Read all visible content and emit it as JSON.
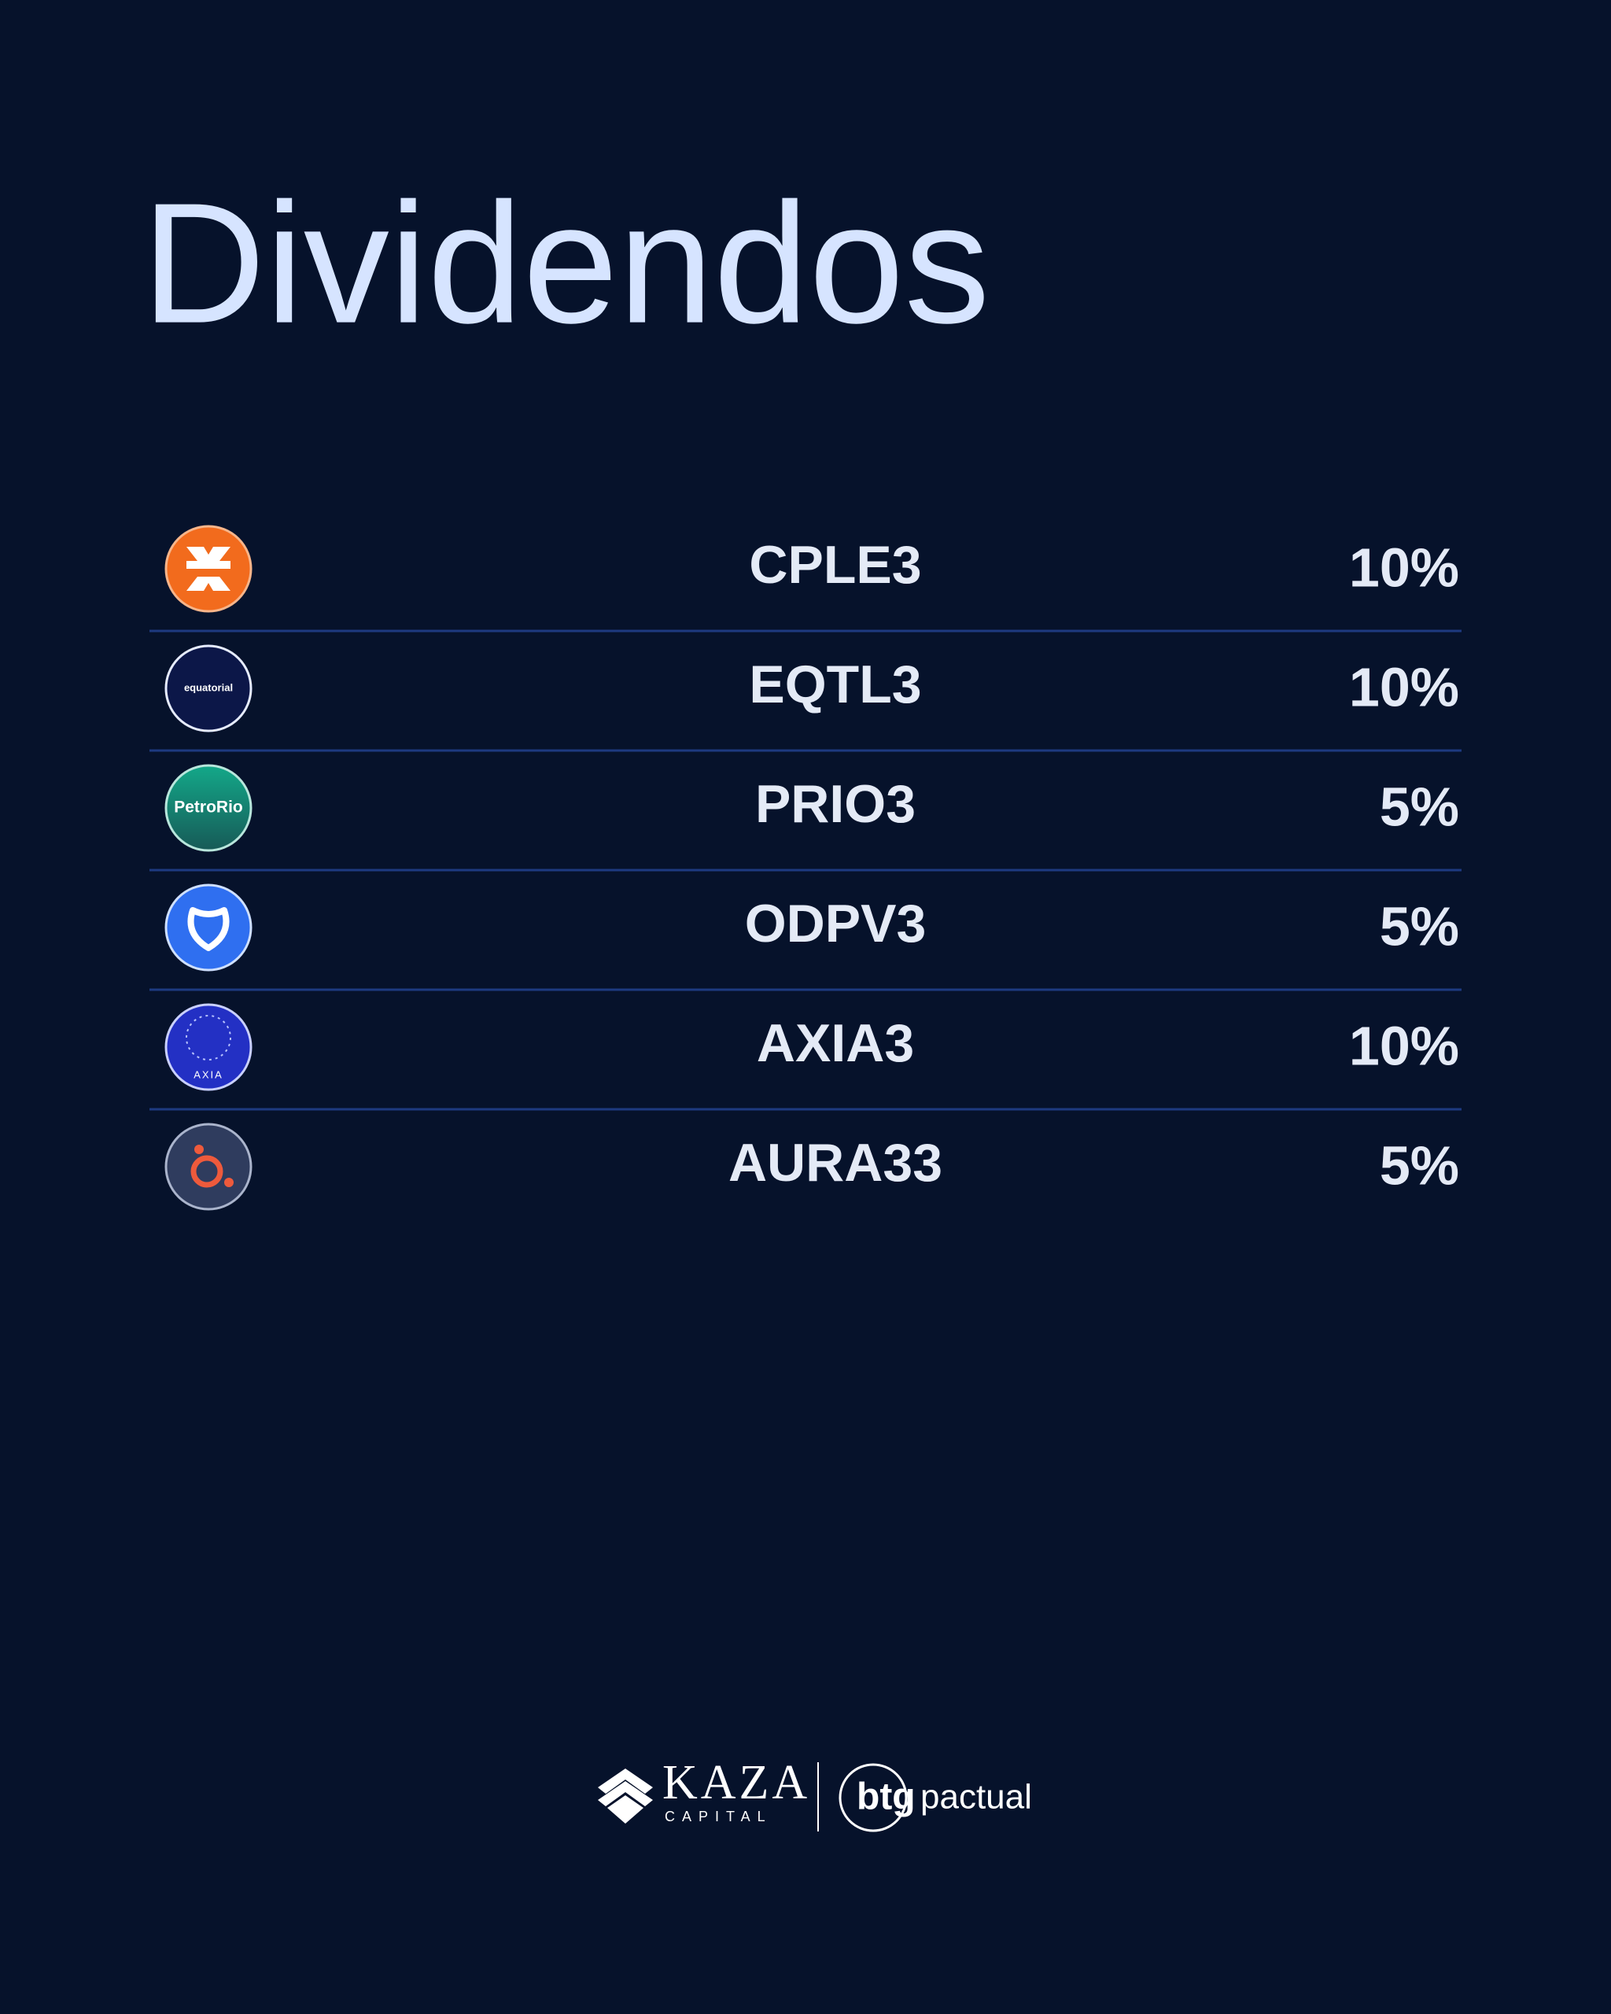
{
  "header": {
    "title": "Dividendos"
  },
  "table": {
    "rows": [
      {
        "ticker": "CPLE3",
        "weight": "10%"
      },
      {
        "ticker": "EQTL3",
        "weight": "10%",
        "logo_text": "equatorial"
      },
      {
        "ticker": "PRIO3",
        "weight": "5%",
        "logo_text": "PetroRio"
      },
      {
        "ticker": "ODPV3",
        "weight": "5%"
      },
      {
        "ticker": "AXIA3",
        "weight": "10%",
        "logo_text": "AXIA"
      },
      {
        "ticker": "AURA33",
        "weight": "5%"
      }
    ]
  },
  "footer": {
    "brand": "KAZA",
    "brand_sub": "CAPITAL",
    "partner_mark": "btg",
    "partner_name": "pactual"
  }
}
